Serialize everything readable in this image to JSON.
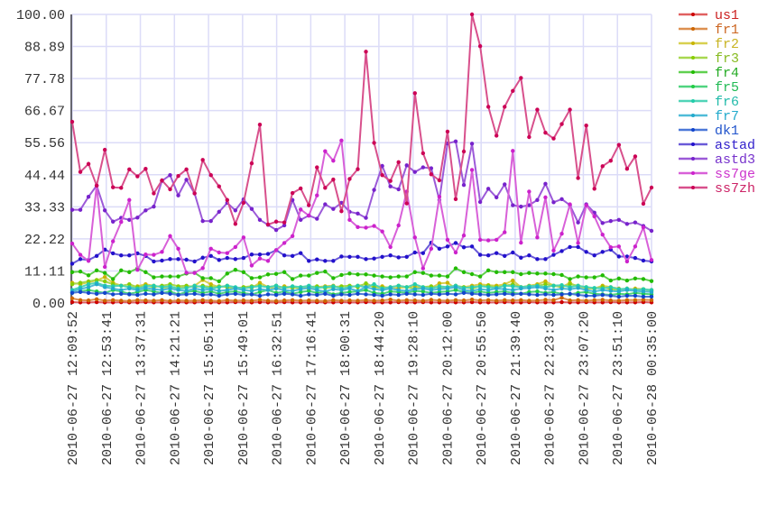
{
  "chart_data": {
    "type": "line",
    "title": "",
    "xlabel": "",
    "ylabel": "",
    "ylim": [
      0,
      100
    ],
    "grid": true,
    "legend_position": "right",
    "y_ticks": [
      "0.00",
      "11.11",
      "22.22",
      "33.33",
      "44.44",
      "55.56",
      "66.67",
      "77.78",
      "88.89",
      "100.00"
    ],
    "x_ticks": [
      "2010-06-27 12:09:52",
      "2010-06-27 12:53:41",
      "2010-06-27 13:37:31",
      "2010-06-27 14:21:21",
      "2010-06-27 15:05:11",
      "2010-06-27 15:49:01",
      "2010-06-27 16:32:51",
      "2010-06-27 17:16:41",
      "2010-06-27 18:00:31",
      "2010-06-27 18:44:20",
      "2010-06-27 19:28:10",
      "2010-06-27 20:12:00",
      "2010-06-27 20:55:50",
      "2010-06-27 21:39:40",
      "2010-06-27 22:23:30",
      "2010-06-27 23:07:20",
      "2010-06-27 23:51:10",
      "2010-06-28 00:35:00"
    ],
    "x_range": [
      "2010-06-27 12:09:52",
      "2010-06-28 00:35:00"
    ],
    "series": [
      {
        "name": "us1",
        "color": "#cc0000",
        "line_color": "#e06060",
        "label_color": "#cc2222",
        "values": [
          0.3,
          0.2,
          0.2,
          0.3,
          0.2,
          0.2,
          0.3,
          0.2,
          0.2,
          0.3,
          0.2,
          0.2,
          0.2,
          0.3,
          0.2,
          0.2,
          0.3,
          0.2,
          0.2,
          0.2,
          0.3,
          0.2,
          0.2,
          0.3,
          0.2,
          0.2,
          0.3,
          0.2,
          0.2,
          0.2,
          0.3,
          0.2,
          0.2,
          0.3,
          0.2,
          0.2,
          0.3,
          0.2,
          0.2,
          0.2,
          0.3,
          0.2,
          0.2,
          0.3,
          0.2,
          0.2,
          0.3,
          0.2,
          0.2,
          0.3,
          0.2,
          0.2,
          0.2,
          0.3,
          0.2,
          0.2,
          0.3,
          0.2,
          0.2,
          0.2,
          0.3,
          0.2,
          0.2,
          0.3,
          0.2,
          0.2,
          0.3,
          0.2,
          0.2,
          0.2,
          0.3,
          0.2
        ]
      },
      {
        "name": "fr1",
        "color": "#cc6600",
        "line_color": "#dd9050",
        "label_color": "#cc6622",
        "values": [
          1.6,
          1.0,
          0.9,
          1.3,
          0.8,
          1.0,
          0.8,
          0.7,
          1.0,
          0.9,
          0.8,
          1.0,
          0.7,
          0.9,
          0.8,
          0.8,
          1.0,
          0.8,
          0.7,
          1.0,
          0.8,
          0.9,
          0.8,
          1.1,
          0.8,
          0.7,
          0.9,
          1.0,
          0.8,
          0.9,
          0.8,
          0.7,
          1.0,
          0.8,
          0.9,
          0.8,
          1.0,
          0.8,
          0.9,
          1.2,
          0.8,
          1.0,
          0.9,
          0.8,
          1.1,
          0.9,
          0.8,
          1.0,
          0.9,
          1.2,
          0.9,
          1.0,
          0.8,
          1.0,
          0.9,
          1.0,
          0.8,
          0.9,
          1.1,
          1.0,
          1.8,
          0.9,
          1.0,
          0.8,
          1.0,
          1.1,
          0.9,
          0.8,
          1.0,
          1.0,
          1.1,
          1.0
        ]
      },
      {
        "name": "fr2",
        "color": "#c8b400",
        "line_color": "#d8d050",
        "label_color": "#c8b422",
        "values": [
          7.0,
          6.5,
          7.2,
          7.8,
          9.0,
          7.0,
          6.0,
          5.5,
          5.8,
          6.5,
          6.0,
          5.5,
          5.0,
          5.2,
          5.5,
          6.0,
          8.0,
          6.5,
          5.5,
          6.0,
          5.0,
          5.5,
          5.2,
          7.0,
          5.5,
          5.0,
          5.8,
          5.2,
          5.5,
          4.8,
          5.5,
          5.8,
          6.0,
          5.0,
          5.5,
          6.0,
          6.5,
          5.5,
          5.8,
          5.0,
          5.2,
          5.5,
          6.0,
          5.0,
          5.2,
          6.8,
          7.0,
          5.0,
          5.5,
          6.0,
          6.5,
          6.2,
          6.0,
          6.5,
          7.8,
          5.5,
          6.0,
          6.5,
          7.5,
          6.0,
          5.5,
          7.0,
          5.5,
          5.0,
          5.0,
          6.0,
          5.5,
          5.0,
          4.5,
          5.0,
          4.8,
          4.5
        ]
      },
      {
        "name": "fr3",
        "color": "#88cc00",
        "line_color": "#a8d850",
        "label_color": "#88bb22",
        "values": [
          6.5,
          7.0,
          7.5,
          8.0,
          7.5,
          6.5,
          6.0,
          6.5,
          5.5,
          6.0,
          5.5,
          6.0,
          6.5,
          5.8,
          6.0,
          5.5,
          6.0,
          5.5,
          5.8,
          5.5,
          5.0,
          5.5,
          5.8,
          6.0,
          5.5,
          6.0,
          5.2,
          5.5,
          5.0,
          5.5,
          5.8,
          5.2,
          5.5,
          5.8,
          6.0,
          5.5,
          6.8,
          5.5,
          5.2,
          5.5,
          6.0,
          5.5,
          5.0,
          5.5,
          5.8,
          5.2,
          5.5,
          6.0,
          5.5,
          5.0,
          5.8,
          6.0,
          5.5,
          6.0,
          6.5,
          5.5,
          5.8,
          6.0,
          6.5,
          6.0,
          5.5,
          6.5,
          6.0,
          5.5,
          5.0,
          5.5,
          4.8,
          4.5,
          5.0,
          4.5,
          4.8,
          4.2
        ]
      },
      {
        "name": "fr4",
        "color": "#22bb00",
        "line_color": "#60d050",
        "label_color": "#22aa22",
        "values": [
          10.7,
          10.9,
          9.6,
          11.3,
          10.4,
          8.3,
          11.3,
          10.7,
          12.0,
          10.7,
          8.9,
          9.2,
          9.2,
          9.2,
          10.2,
          10.5,
          8.6,
          8.6,
          7.5,
          10.2,
          11.5,
          10.7,
          8.6,
          8.9,
          9.9,
          10.1,
          10.7,
          8.3,
          9.5,
          9.5,
          10.4,
          10.9,
          8.6,
          9.7,
          10.2,
          9.9,
          9.9,
          9.5,
          9.2,
          8.9,
          9.2,
          9.2,
          10.7,
          10.4,
          9.5,
          9.5,
          9.2,
          12.0,
          10.7,
          10.0,
          9.2,
          11.3,
          10.7,
          10.7,
          10.7,
          10.0,
          10.4,
          10.2,
          10.2,
          10.0,
          9.7,
          8.3,
          9.2,
          8.9,
          8.9,
          9.6,
          7.8,
          8.5,
          7.8,
          8.5,
          8.3,
          7.6
        ]
      },
      {
        "name": "fr5",
        "color": "#22cc44",
        "line_color": "#50d480",
        "label_color": "#22bb55",
        "values": [
          3.5,
          4.0,
          4.5,
          4.0,
          3.5,
          4.5,
          4.0,
          3.2,
          3.8,
          4.5,
          4.0,
          3.5,
          4.0,
          3.0,
          3.8,
          4.2,
          3.5,
          4.0,
          3.2,
          3.8,
          4.0,
          3.5,
          3.0,
          3.8,
          4.5,
          3.5,
          4.0,
          3.2,
          3.8,
          4.2,
          3.5,
          4.0,
          3.0,
          3.5,
          3.8,
          4.0,
          4.5,
          3.5,
          3.2,
          4.0,
          3.8,
          3.5,
          4.2,
          4.0,
          3.5,
          3.8,
          4.0,
          4.5,
          3.8,
          3.5,
          4.0,
          3.5,
          3.8,
          4.0,
          3.5,
          3.2,
          3.8,
          4.0,
          3.5,
          3.8,
          3.2,
          3.0,
          3.5,
          3.8,
          3.2,
          3.0,
          2.8,
          3.2,
          3.0,
          3.5,
          3.2,
          3.0
        ]
      },
      {
        "name": "fr6",
        "color": "#22ccaa",
        "line_color": "#50d4b8",
        "label_color": "#22bbaa",
        "values": [
          4.5,
          5.5,
          6.5,
          7.0,
          6.0,
          5.8,
          6.0,
          5.5,
          5.0,
          5.8,
          6.0,
          5.5,
          5.8,
          5.0,
          5.2,
          6.0,
          5.5,
          5.0,
          5.5,
          6.0,
          5.5,
          5.0,
          5.5,
          5.8,
          5.5,
          6.0,
          5.2,
          5.8,
          5.5,
          6.0,
          5.2,
          5.5,
          5.8,
          5.0,
          5.5,
          6.0,
          5.5,
          6.5,
          5.0,
          5.5,
          6.0,
          5.5,
          6.5,
          5.5,
          5.0,
          5.8,
          5.5,
          6.0,
          5.2,
          5.5,
          5.8,
          5.5,
          5.2,
          6.0,
          5.8,
          5.5,
          5.8,
          6.0,
          5.5,
          6.0,
          6.2,
          5.5,
          6.0,
          5.5,
          5.2,
          5.0,
          5.5,
          4.8,
          5.0,
          4.5,
          4.8,
          4.5
        ]
      },
      {
        "name": "fr7",
        "color": "#22aacc",
        "line_color": "#50bcd8",
        "label_color": "#22aacc",
        "values": [
          4.0,
          4.8,
          5.5,
          6.5,
          5.5,
          5.0,
          4.5,
          5.0,
          4.5,
          5.2,
          4.8,
          4.5,
          5.0,
          4.5,
          4.2,
          5.0,
          4.5,
          4.8,
          4.2,
          4.5,
          5.0,
          4.5,
          4.2,
          4.8,
          4.5,
          5.0,
          4.5,
          4.2,
          4.8,
          5.2,
          4.5,
          4.0,
          4.8,
          4.5,
          5.0,
          4.2,
          5.5,
          4.8,
          4.5,
          5.0,
          4.5,
          4.2,
          4.8,
          5.0,
          4.5,
          4.8,
          5.0,
          5.5,
          4.5,
          4.2,
          4.8,
          4.5,
          5.0,
          4.8,
          4.5,
          5.0,
          5.2,
          5.5,
          5.0,
          4.5,
          5.0,
          4.8,
          5.2,
          4.5,
          4.0,
          4.5,
          4.2,
          4.0,
          4.5,
          4.2,
          4.0,
          3.8
        ]
      },
      {
        "name": "dk1",
        "color": "#1144cc",
        "line_color": "#4c78d8",
        "label_color": "#2255cc",
        "values": [
          3.5,
          3.8,
          3.5,
          3.2,
          3.5,
          3.0,
          3.2,
          3.0,
          2.8,
          3.2,
          3.0,
          3.5,
          3.2,
          2.8,
          3.0,
          3.2,
          2.8,
          3.0,
          2.5,
          3.0,
          3.2,
          2.8,
          3.0,
          2.5,
          3.0,
          2.8,
          3.2,
          3.0,
          2.5,
          3.0,
          2.8,
          3.2,
          2.5,
          3.0,
          2.8,
          3.2,
          3.0,
          2.8,
          2.5,
          3.0,
          2.8,
          3.2,
          3.0,
          2.8,
          3.2,
          3.0,
          3.2,
          3.0,
          3.5,
          3.2,
          3.0,
          2.8,
          3.0,
          3.2,
          3.0,
          3.2,
          3.0,
          2.8,
          3.0,
          2.8,
          3.0,
          3.2,
          2.8,
          2.5,
          2.5,
          2.8,
          2.5,
          2.2,
          2.5,
          2.5,
          2.2,
          2.2
        ]
      },
      {
        "name": "astad",
        "color": "#2211cc",
        "line_color": "#6a5ad8",
        "label_color": "#3322cc",
        "values": [
          13.6,
          15.2,
          14.9,
          16.3,
          18.5,
          17.2,
          16.5,
          16.5,
          17.2,
          16.3,
          14.4,
          14.7,
          15.2,
          15.2,
          15.0,
          14.4,
          15.7,
          16.3,
          14.9,
          15.6,
          15.2,
          15.6,
          16.8,
          16.8,
          17.0,
          18.3,
          16.5,
          16.3,
          17.3,
          14.6,
          15.1,
          14.6,
          14.6,
          16.1,
          16.0,
          16.0,
          15.2,
          15.4,
          16.0,
          16.5,
          15.8,
          16.0,
          17.5,
          17.3,
          20.9,
          18.8,
          19.6,
          20.8,
          19.3,
          19.6,
          16.7,
          16.5,
          17.3,
          16.3,
          17.5,
          15.7,
          16.5,
          15.2,
          15.2,
          16.7,
          18.0,
          19.4,
          19.4,
          17.7,
          16.5,
          17.7,
          18.5,
          16.1,
          16.1,
          15.6,
          14.7,
          14.4
        ]
      },
      {
        "name": "astd3",
        "color": "#7722cc",
        "line_color": "#9c5ad8",
        "label_color": "#7733cc",
        "values": [
          32.3,
          32.3,
          36.8,
          40.7,
          32.1,
          28.2,
          29.5,
          28.8,
          29.6,
          32.1,
          33.4,
          42.3,
          44.3,
          37.3,
          42.7,
          38.0,
          28.4,
          28.4,
          31.6,
          34.7,
          32.1,
          35.9,
          32.6,
          28.8,
          27.1,
          25.3,
          26.9,
          35.7,
          28.8,
          30.3,
          29.2,
          34.2,
          32.6,
          34.7,
          31.6,
          31.0,
          29.5,
          39.2,
          47.5,
          40.4,
          39.4,
          47.7,
          45.4,
          47.0,
          46.7,
          35.7,
          55.3,
          56.0,
          40.9,
          55.2,
          35.0,
          39.6,
          36.6,
          41.1,
          33.9,
          33.4,
          33.9,
          35.7,
          41.3,
          34.9,
          36.0,
          33.9,
          27.9,
          34.2,
          31.3,
          27.7,
          28.4,
          28.8,
          27.4,
          27.9,
          26.7,
          25.0
        ]
      },
      {
        "name": "ss7ge",
        "color": "#cc22cc",
        "line_color": "#d860d8",
        "label_color": "#cc33cc",
        "values": [
          20.6,
          16.7,
          14.6,
          40.7,
          12.5,
          21.4,
          28.1,
          35.7,
          11.5,
          16.8,
          16.7,
          17.7,
          23.2,
          18.8,
          10.5,
          10.4,
          12.1,
          18.8,
          17.5,
          17.3,
          19.4,
          22.7,
          13.0,
          15.4,
          14.6,
          18.3,
          20.8,
          23.2,
          32.4,
          30.3,
          37.3,
          52.6,
          49.3,
          56.3,
          28.8,
          26.3,
          26.1,
          26.7,
          24.8,
          19.4,
          26.9,
          38.6,
          22.7,
          12.0,
          18.8,
          36.8,
          21.9,
          17.5,
          23.4,
          46.1,
          21.9,
          21.7,
          21.9,
          24.5,
          52.7,
          20.9,
          38.6,
          22.7,
          36.6,
          18.2,
          24.0,
          34.2,
          20.8,
          33.9,
          30.0,
          23.7,
          19.3,
          19.6,
          14.4,
          19.6,
          26.2,
          14.9
        ]
      },
      {
        "name": "ss7zh",
        "color": "#cc0055",
        "line_color": "#d8508c",
        "label_color": "#cc2266",
        "values": [
          62.8,
          45.4,
          48.2,
          40.7,
          53.1,
          40.1,
          39.9,
          46.3,
          43.9,
          46.5,
          38.0,
          42.5,
          39.4,
          44.0,
          46.3,
          38.0,
          49.6,
          44.3,
          40.4,
          35.7,
          27.4,
          34.7,
          48.4,
          61.8,
          27.2,
          28.2,
          27.9,
          38.1,
          39.7,
          33.9,
          47.0,
          39.9,
          42.8,
          31.8,
          43.0,
          46.4,
          87.1,
          55.5,
          44.3,
          42.3,
          48.8,
          34.5,
          72.7,
          51.9,
          44.6,
          42.5,
          59.4,
          36.0,
          52.5,
          100.0,
          89.0,
          68.0,
          58.0,
          68.0,
          73.5,
          78.0,
          57.5,
          67.0,
          59.0,
          57.0,
          62.0,
          67.0,
          43.3,
          61.5,
          39.6,
          47.4,
          49.3,
          54.8,
          46.5,
          50.8,
          34.4,
          40.0
        ]
      }
    ]
  }
}
